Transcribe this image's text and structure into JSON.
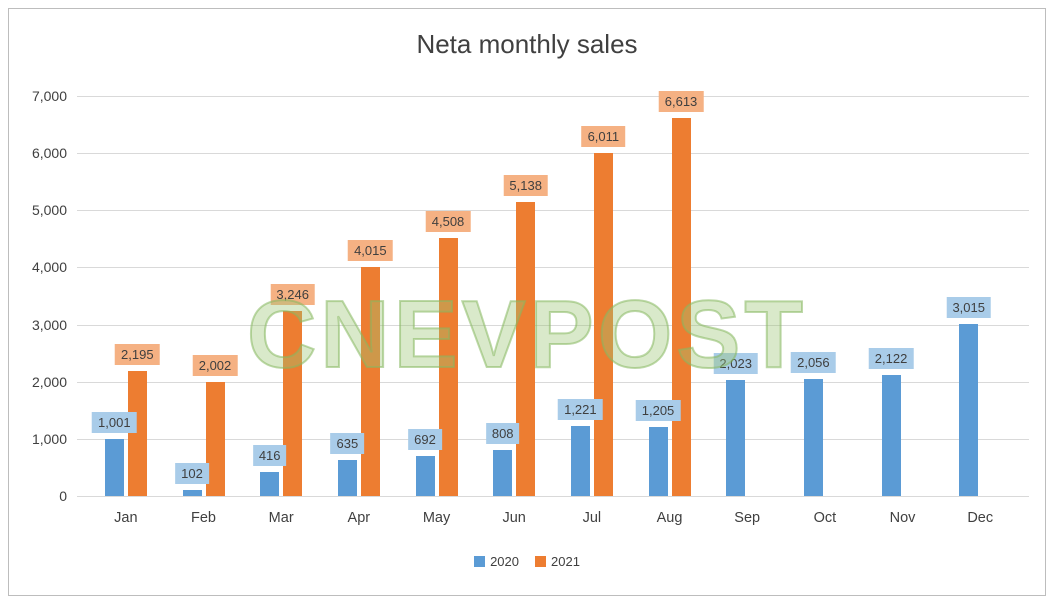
{
  "title": "Neta monthly sales",
  "watermark": "CNEVPOST",
  "chart_data": {
    "type": "bar",
    "title": "Neta monthly sales",
    "categories": [
      "Jan",
      "Feb",
      "Mar",
      "Apr",
      "May",
      "Jun",
      "Jul",
      "Aug",
      "Sep",
      "Oct",
      "Nov",
      "Dec"
    ],
    "series": [
      {
        "name": "2020",
        "color": "#5B9BD5",
        "label_bg": "#A9CCE9",
        "values": [
          1001,
          102,
          416,
          635,
          692,
          808,
          1221,
          1205,
          2023,
          2056,
          2122,
          3015
        ]
      },
      {
        "name": "2021",
        "color": "#ED7D31",
        "label_bg": "#F5B183",
        "values": [
          2195,
          2002,
          3246,
          4015,
          4508,
          5138,
          6011,
          6613,
          null,
          null,
          null,
          null
        ]
      }
    ],
    "ylim": [
      0,
      7000
    ],
    "ytick_interval": 1000,
    "ytick_labels": [
      "0",
      "1,000",
      "2,000",
      "3,000",
      "4,000",
      "5,000",
      "6,000",
      "7,000"
    ],
    "grid": true,
    "legend_position": "bottom",
    "data_labels": true
  }
}
